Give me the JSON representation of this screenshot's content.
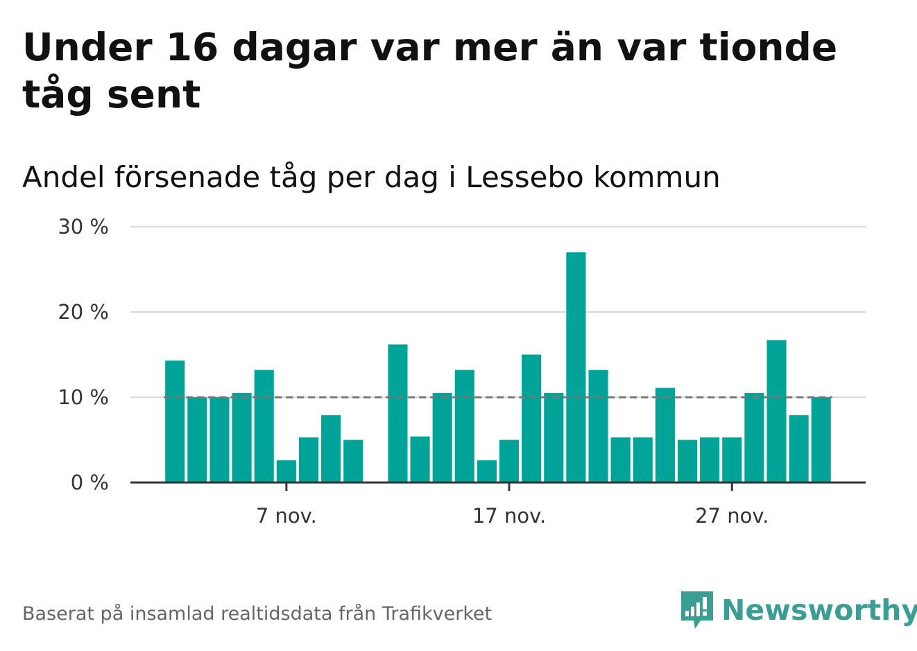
{
  "title": "Under 16 dagar var mer än var tionde tåg sent",
  "subtitle": "Andel försenade tåg per dag i Lessebo kommun",
  "source": "Baserat på insamlad realtidsdata från Trafikverket",
  "brand": {
    "name": "Newsworthy",
    "icon": "newsworthy-logo-icon",
    "color": "#3a9e94"
  },
  "colors": {
    "bar": "#00a398",
    "reference_line": "#777777",
    "grid": "#dddddd",
    "axis": "#333333"
  },
  "chart_data": {
    "type": "bar",
    "title": "Andel försenade tåg per dag i Lessebo kommun",
    "xlabel": "",
    "ylabel": "",
    "x_ticks": [
      {
        "date": "2023-11-07",
        "label": "7 nov."
      },
      {
        "date": "2023-11-17",
        "label": "17 nov."
      },
      {
        "date": "2023-11-27",
        "label": "27 nov."
      }
    ],
    "y_ticks": [
      {
        "value": 0,
        "label": "0 %"
      },
      {
        "value": 10,
        "label": "10 %"
      },
      {
        "value": 20,
        "label": "20 %"
      },
      {
        "value": 30,
        "label": "30 %"
      }
    ],
    "ylim": [
      0,
      30
    ],
    "xlim": [
      "2023-10-31",
      "2023-12-03"
    ],
    "reference_line": 10,
    "grid": true,
    "legend": "none",
    "x": [
      "2023-11-02",
      "2023-11-03",
      "2023-11-04",
      "2023-11-05",
      "2023-11-06",
      "2023-11-07",
      "2023-11-08",
      "2023-11-09",
      "2023-11-10",
      "2023-11-11",
      "2023-11-12",
      "2023-11-13",
      "2023-11-14",
      "2023-11-15",
      "2023-11-16",
      "2023-11-17",
      "2023-11-18",
      "2023-11-19",
      "2023-11-20",
      "2023-11-21",
      "2023-11-22",
      "2023-11-23",
      "2023-11-24",
      "2023-11-25",
      "2023-11-26",
      "2023-11-27",
      "2023-11-28",
      "2023-11-29",
      "2023-11-30",
      "2023-12-01"
    ],
    "values": [
      14.3,
      10.0,
      10.0,
      10.5,
      13.2,
      2.6,
      5.3,
      7.9,
      5.0,
      null,
      16.2,
      5.4,
      10.5,
      13.2,
      2.6,
      5.0,
      15.0,
      10.5,
      27.0,
      13.2,
      5.3,
      5.3,
      11.1,
      5.0,
      5.3,
      5.3,
      10.5,
      16.7,
      7.9,
      10.0
    ]
  }
}
